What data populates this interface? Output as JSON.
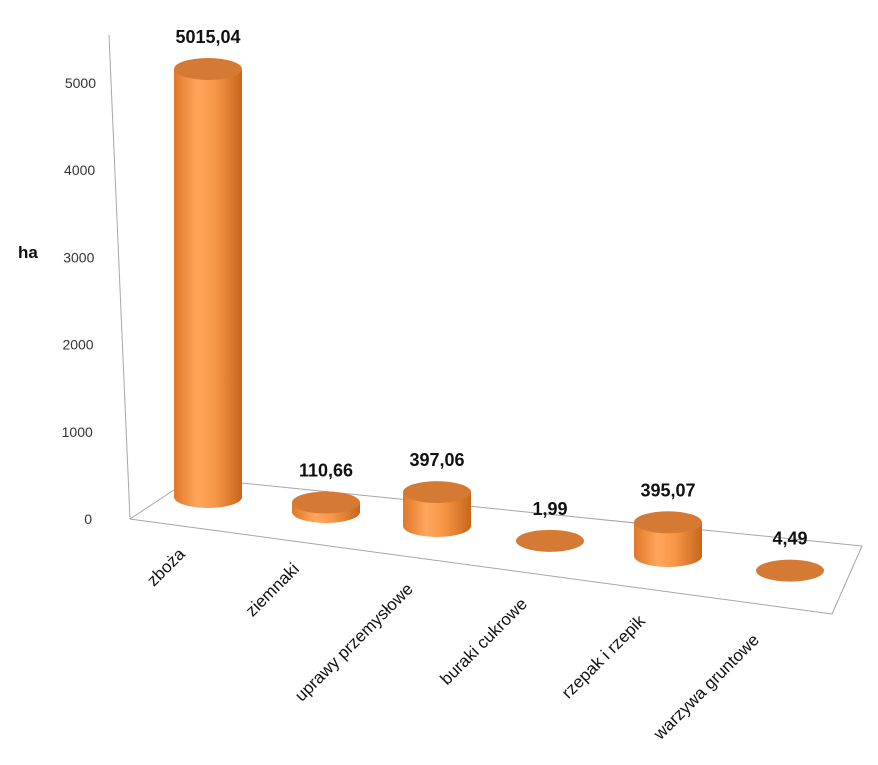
{
  "chart_data": {
    "type": "bar",
    "style": "3d-cylinder",
    "ylabel": "ha",
    "xlabel": "",
    "title": "",
    "ylim": [
      0,
      5000
    ],
    "yticks": [
      0,
      1000,
      2000,
      3000,
      4000,
      5000
    ],
    "grid": false,
    "categories": [
      "zboża",
      "ziemnaki",
      "uprawy przemysłowe",
      "buraki cukrowe",
      "rzepak i rzepik",
      "warzywa gruntowe"
    ],
    "values": [
      5015.04,
      110.66,
      397.06,
      1.99,
      395.07,
      4.49
    ],
    "data_labels": [
      "5015,04",
      "110,66",
      "397,06",
      "1,99",
      "395,07",
      "4,49"
    ],
    "colors": {
      "bar": "#F79646",
      "bar_dark": "#C96A20",
      "bar_top": "#D57A34",
      "axis": "#A6A6A6"
    }
  }
}
